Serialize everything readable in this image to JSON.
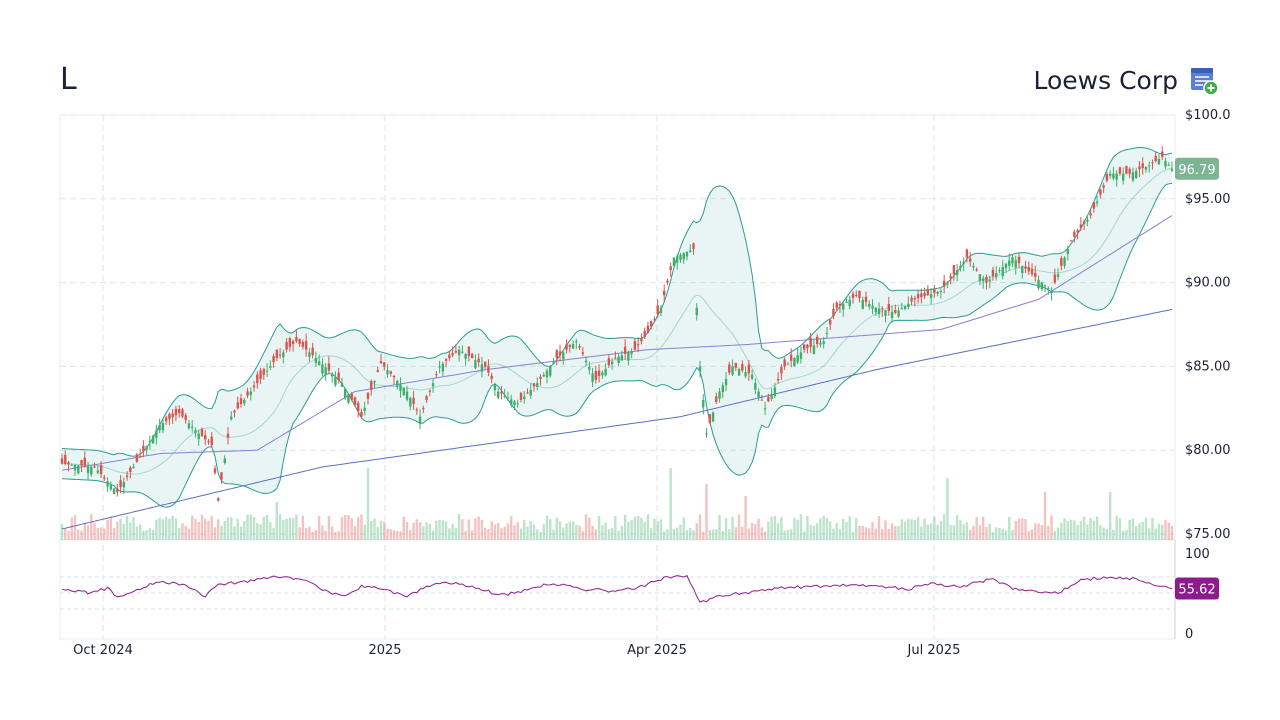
{
  "header": {
    "ticker": "L",
    "company": "Loews Corp"
  },
  "icons": {
    "watchlist": "add-to-watchlist-icon"
  },
  "colors": {
    "up": "#3fae6a",
    "down": "#d9534f",
    "band": "#2a9d8f",
    "ma_long": "#5a6fc0",
    "ma_mid": "#8a7fd0",
    "rsi": "#8e1b8e",
    "price_badge": "#7bb594",
    "rsi_badge": "#8e1b8e"
  },
  "chart_data": [
    {
      "type": "candlestick",
      "title": "",
      "x_ticks": [
        "Oct 2024",
        "2025",
        "Apr 2025",
        "Jul 2025"
      ],
      "y_ticks": [
        "$100.0",
        "$95.00",
        "$90.00",
        "$85.00",
        "$80.00",
        "$75.00"
      ],
      "ylim": [
        75,
        100
      ],
      "last_price": "96.79",
      "anchors": [
        [
          0,
          79.2
        ],
        [
          10,
          79.0
        ],
        [
          17,
          77.5
        ],
        [
          23,
          79.3
        ],
        [
          30,
          81.5
        ],
        [
          36,
          82.2
        ],
        [
          42,
          81.0
        ],
        [
          46,
          80.3
        ],
        [
          48,
          77.0
        ],
        [
          52,
          82.0
        ],
        [
          58,
          83.5
        ],
        [
          66,
          85.5
        ],
        [
          72,
          86.5
        ],
        [
          78,
          85.5
        ],
        [
          86,
          84.0
        ],
        [
          92,
          82.0
        ],
        [
          98,
          85.2
        ],
        [
          106,
          83.5
        ],
        [
          110,
          82.0
        ],
        [
          116,
          85.0
        ],
        [
          122,
          86.0
        ],
        [
          130,
          85.0
        ],
        [
          134,
          83.5
        ],
        [
          140,
          82.8
        ],
        [
          146,
          84.0
        ],
        [
          152,
          85.5
        ],
        [
          158,
          86.5
        ],
        [
          164,
          84.2
        ],
        [
          170,
          85.5
        ],
        [
          176,
          86.0
        ],
        [
          180,
          87.0
        ],
        [
          184,
          88.5
        ],
        [
          188,
          91.5
        ],
        [
          194,
          92.0
        ],
        [
          196,
          85.0
        ],
        [
          198,
          81.0
        ],
        [
          202,
          83.5
        ],
        [
          206,
          85.0
        ],
        [
          212,
          84.5
        ],
        [
          216,
          82.5
        ],
        [
          222,
          85.0
        ],
        [
          228,
          86.0
        ],
        [
          234,
          86.5
        ],
        [
          238,
          88.5
        ],
        [
          244,
          89.2
        ],
        [
          250,
          88.5
        ],
        [
          256,
          88.2
        ],
        [
          262,
          89.0
        ],
        [
          270,
          89.5
        ],
        [
          278,
          91.5
        ],
        [
          284,
          90.0
        ],
        [
          292,
          91.5
        ],
        [
          298,
          90.5
        ],
        [
          304,
          89.5
        ],
        [
          310,
          92.5
        ],
        [
          316,
          94.0
        ],
        [
          322,
          96.5
        ],
        [
          328,
          96.5
        ],
        [
          334,
          97.0
        ],
        [
          338,
          97.5
        ],
        [
          341,
          96.79
        ]
      ],
      "moving_average_long": [
        [
          0,
          75.3
        ],
        [
          80,
          79.0
        ],
        [
          190,
          82.0
        ],
        [
          250,
          84.8
        ],
        [
          341,
          88.4
        ]
      ],
      "moving_average_mid": [
        [
          0,
          78.8
        ],
        [
          30,
          79.8
        ],
        [
          60,
          80.0
        ],
        [
          90,
          83.5
        ],
        [
          130,
          84.8
        ],
        [
          180,
          86.0
        ],
        [
          210,
          86.3
        ],
        [
          270,
          87.2
        ],
        [
          300,
          89.0
        ],
        [
          341,
          94.0
        ]
      ]
    },
    {
      "type": "line",
      "title": "",
      "ylim": [
        0,
        100
      ],
      "y_ticks": [
        "100",
        "0"
      ],
      "last_value": "55.62",
      "anchors": [
        [
          0,
          55
        ],
        [
          8,
          50
        ],
        [
          14,
          56
        ],
        [
          17,
          44
        ],
        [
          22,
          52
        ],
        [
          30,
          65
        ],
        [
          40,
          57
        ],
        [
          44,
          46
        ],
        [
          48,
          60
        ],
        [
          58,
          65
        ],
        [
          66,
          70
        ],
        [
          74,
          67
        ],
        [
          80,
          55
        ],
        [
          86,
          45
        ],
        [
          92,
          58
        ],
        [
          98,
          55
        ],
        [
          106,
          46
        ],
        [
          112,
          58
        ],
        [
          118,
          64
        ],
        [
          126,
          58
        ],
        [
          134,
          48
        ],
        [
          140,
          50
        ],
        [
          150,
          62
        ],
        [
          160,
          55
        ],
        [
          170,
          52
        ],
        [
          178,
          58
        ],
        [
          186,
          70
        ],
        [
          192,
          72
        ],
        [
          196,
          38
        ],
        [
          202,
          47
        ],
        [
          210,
          50
        ],
        [
          220,
          56
        ],
        [
          230,
          58
        ],
        [
          240,
          60
        ],
        [
          250,
          58
        ],
        [
          260,
          55
        ],
        [
          268,
          62
        ],
        [
          276,
          58
        ],
        [
          286,
          68
        ],
        [
          292,
          56
        ],
        [
          300,
          52
        ],
        [
          306,
          50
        ],
        [
          312,
          65
        ],
        [
          320,
          70
        ],
        [
          330,
          68
        ],
        [
          336,
          58
        ],
        [
          341,
          55.62
        ]
      ]
    }
  ]
}
